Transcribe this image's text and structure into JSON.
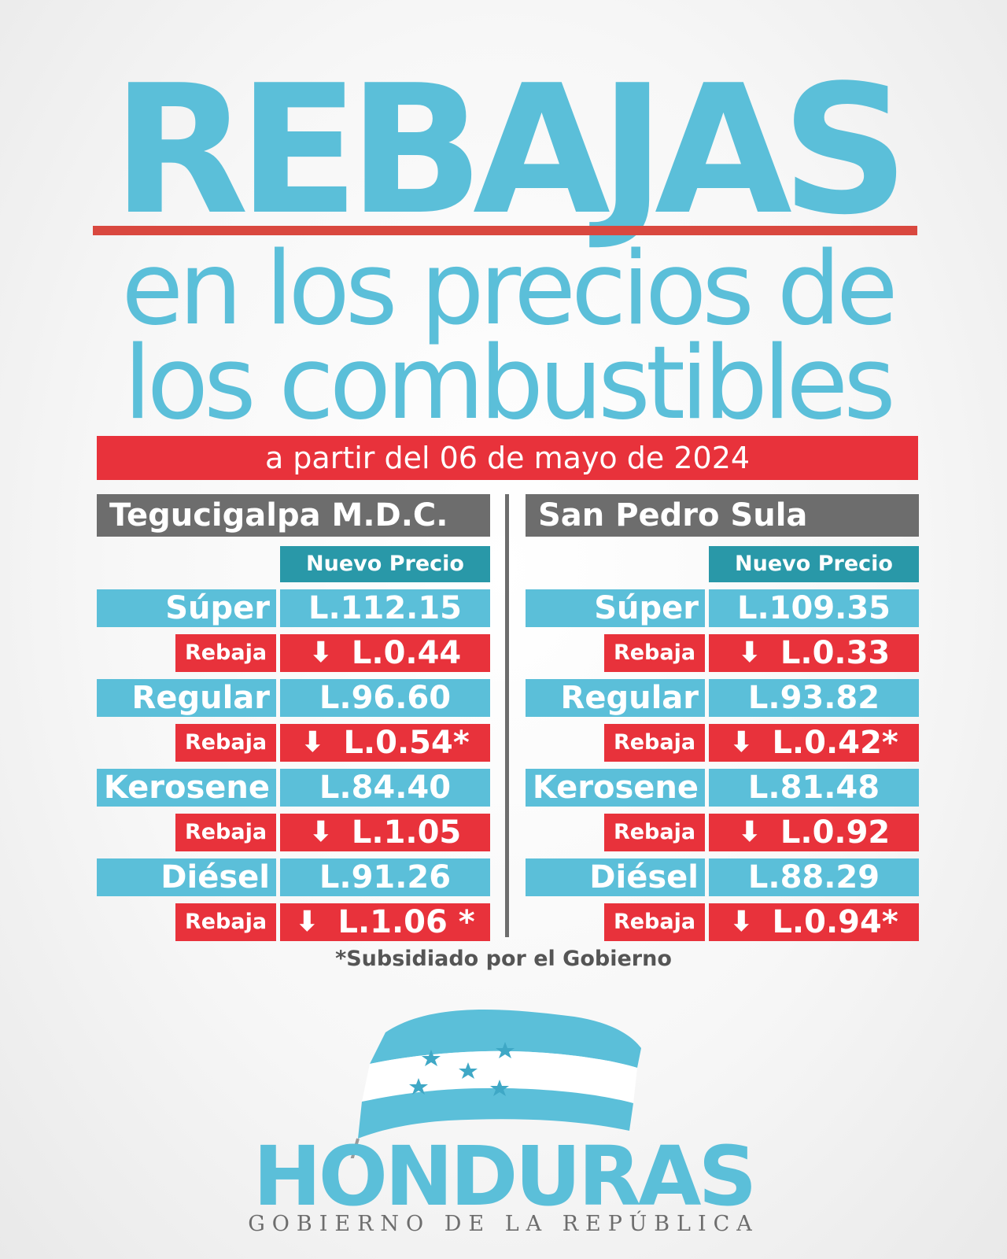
{
  "title": "REBAJAS",
  "subtitle_line1": "en los precios de",
  "subtitle_line2": "los combustibles",
  "date_band": "a partir del 06 de mayo de 2024",
  "new_price_header": "Nuevo Precio",
  "rebaja_label": "Rebaja",
  "cities": [
    {
      "name": "Tegucigalpa M.D.C.",
      "fuels": [
        {
          "label": "Súper",
          "price": "L.112.15",
          "rebaja": "L.0.44"
        },
        {
          "label": "Regular",
          "price": "L.96.60",
          "rebaja": "L.0.54*"
        },
        {
          "label": "Kerosene",
          "price": "L.84.40",
          "rebaja": "L.1.05"
        },
        {
          "label": "Diésel",
          "price": "L.91.26",
          "rebaja": "L.1.06 *"
        }
      ]
    },
    {
      "name": "San Pedro Sula",
      "fuels": [
        {
          "label": "Súper",
          "price": "L.109.35",
          "rebaja": "L.0.33"
        },
        {
          "label": "Regular",
          "price": "L.93.82",
          "rebaja": "L.0.42*"
        },
        {
          "label": "Kerosene",
          "price": "L.81.48",
          "rebaja": "L.0.92"
        },
        {
          "label": "Diésel",
          "price": "L.88.29",
          "rebaja": "L.0.94*"
        }
      ]
    }
  ],
  "footnote": "*Subsidiado por el Gobierno",
  "brand": "HONDURAS",
  "brand_sub": "GOBIERNO DE LA REPÚBLICA",
  "colors": {
    "accent_blue": "#5bbfd9",
    "dark_teal": "#2998a8",
    "red": "#e8323b",
    "gray": "#6d6d6d"
  }
}
